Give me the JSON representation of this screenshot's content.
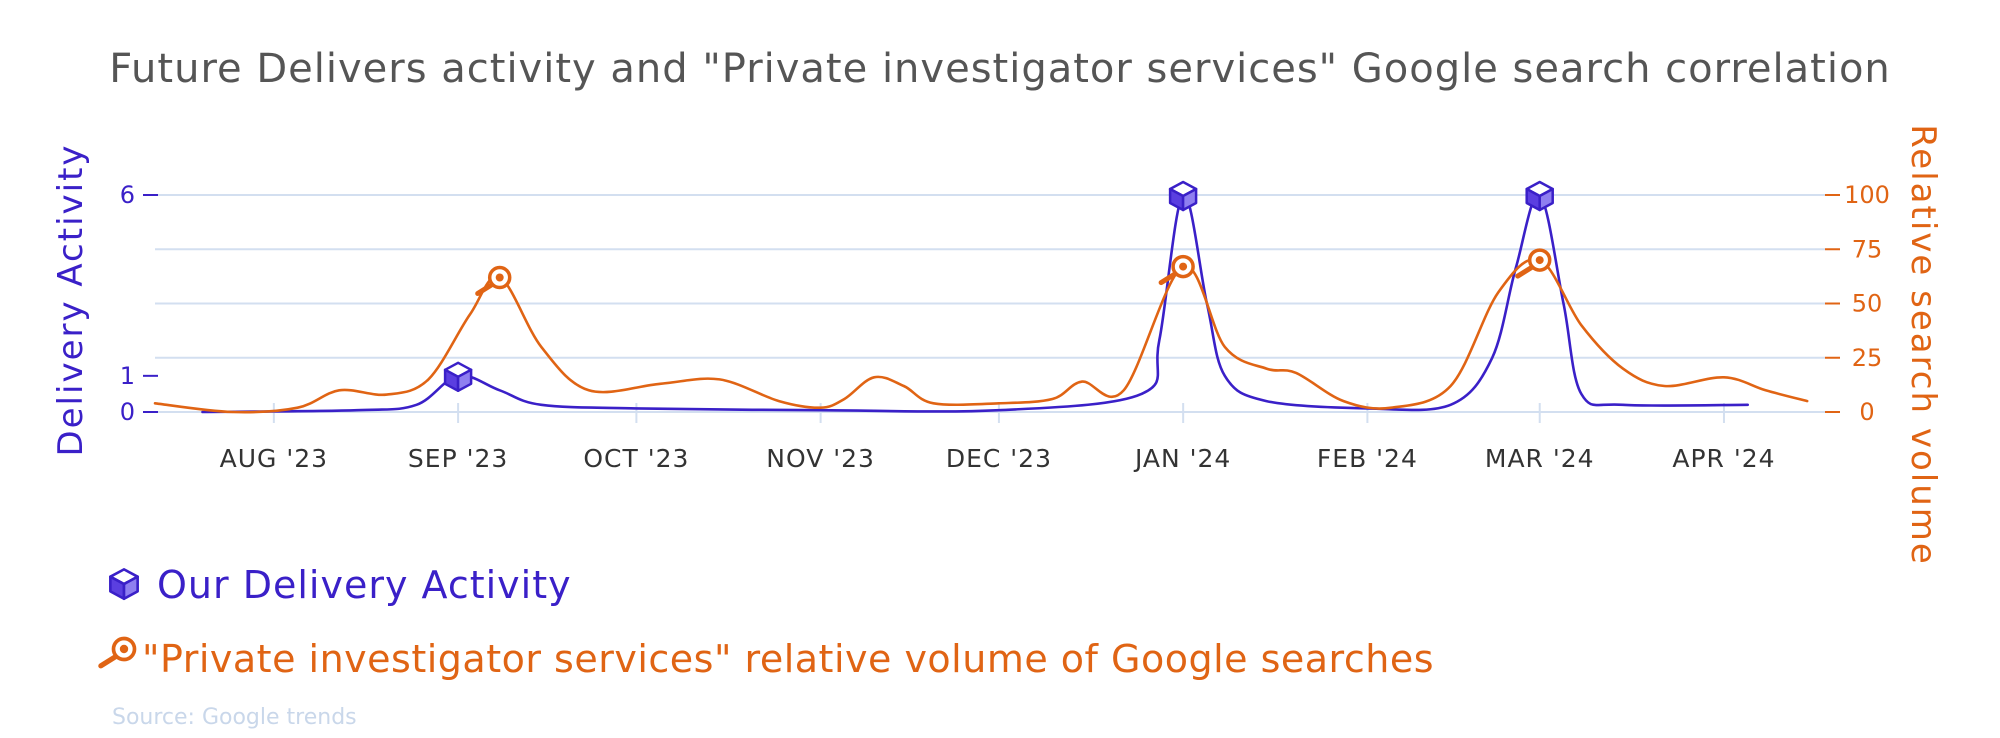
{
  "chart_data": {
    "type": "line",
    "title": "Future Delivers activity and \"Private investigator services\" Google search correlation",
    "x_ticks": [
      "AUG '23",
      "SEP '23",
      "OCT '23",
      "NOV '23",
      "DEC '23",
      "JAN '24",
      "FEB '24",
      "MAR '24",
      "APR '24"
    ],
    "y_left": {
      "label": "Delivery Activity",
      "ticks": [
        0,
        1,
        6
      ],
      "range": [
        0,
        6
      ]
    },
    "y_right": {
      "label": "Relative search volume",
      "ticks": [
        0,
        25,
        50,
        75,
        100
      ],
      "range": [
        0,
        100
      ]
    },
    "grid": true,
    "legend_placement": "bottom-left",
    "series": [
      {
        "name": "Our Delivery Activity",
        "axis": "left",
        "color": "#3a20c8",
        "marker_icon": "cube-icon",
        "points": [
          [
            "2023-07-20",
            0.0
          ],
          [
            "2023-08-15",
            0.05
          ],
          [
            "2023-08-25",
            0.2
          ],
          [
            "2023-09-01",
            1.0
          ],
          [
            "2023-09-08",
            0.6
          ],
          [
            "2023-09-15",
            0.2
          ],
          [
            "2023-10-01",
            0.1
          ],
          [
            "2023-11-01",
            0.05
          ],
          [
            "2023-12-01",
            0.05
          ],
          [
            "2023-12-25",
            0.5
          ],
          [
            "2023-12-28",
            2.0
          ],
          [
            "2024-01-01",
            6.0
          ],
          [
            "2024-01-05",
            3.0
          ],
          [
            "2024-01-08",
            1.0
          ],
          [
            "2024-01-15",
            0.3
          ],
          [
            "2024-02-01",
            0.1
          ],
          [
            "2024-02-15",
            0.2
          ],
          [
            "2024-02-22",
            1.5
          ],
          [
            "2024-02-26",
            4.0
          ],
          [
            "2024-03-01",
            6.0
          ],
          [
            "2024-03-05",
            3.0
          ],
          [
            "2024-03-08",
            0.5
          ],
          [
            "2024-03-15",
            0.2
          ],
          [
            "2024-04-05",
            0.2
          ]
        ],
        "marked_points": [
          [
            "2023-09-01",
            1
          ],
          [
            "2024-01-01",
            6
          ],
          [
            "2024-03-01",
            6
          ]
        ]
      },
      {
        "name": "\"Private investigator services\" relative volume of Google searches",
        "axis": "right",
        "color": "#e06414",
        "marker_icon": "magnifier-icon",
        "points": [
          [
            "2023-07-12",
            4
          ],
          [
            "2023-07-25",
            0
          ],
          [
            "2023-08-05",
            2
          ],
          [
            "2023-08-12",
            10
          ],
          [
            "2023-08-20",
            8
          ],
          [
            "2023-08-27",
            15
          ],
          [
            "2023-09-03",
            45
          ],
          [
            "2023-09-08",
            62
          ],
          [
            "2023-09-15",
            30
          ],
          [
            "2023-09-23",
            10
          ],
          [
            "2023-10-05",
            13
          ],
          [
            "2023-10-15",
            15
          ],
          [
            "2023-10-25",
            5
          ],
          [
            "2023-11-01",
            2
          ],
          [
            "2023-11-05",
            6
          ],
          [
            "2023-11-10",
            16
          ],
          [
            "2023-11-15",
            12
          ],
          [
            "2023-11-20",
            4
          ],
          [
            "2023-12-01",
            4
          ],
          [
            "2023-12-10",
            6
          ],
          [
            "2023-12-15",
            14
          ],
          [
            "2023-12-22",
            10
          ],
          [
            "2024-01-01",
            67
          ],
          [
            "2024-01-08",
            30
          ],
          [
            "2024-01-15",
            20
          ],
          [
            "2024-01-20",
            18
          ],
          [
            "2024-01-28",
            5
          ],
          [
            "2024-02-05",
            2
          ],
          [
            "2024-02-15",
            12
          ],
          [
            "2024-02-23",
            55
          ],
          [
            "2024-03-01",
            70
          ],
          [
            "2024-03-08",
            40
          ],
          [
            "2024-03-15",
            20
          ],
          [
            "2024-03-22",
            12
          ],
          [
            "2024-04-01",
            16
          ],
          [
            "2024-04-08",
            10
          ],
          [
            "2024-04-15",
            5
          ]
        ],
        "marked_points": [
          [
            "2023-09-08",
            62
          ],
          [
            "2024-01-01",
            67
          ],
          [
            "2024-03-01",
            70
          ]
        ]
      }
    ],
    "source": "Source: Google trends"
  }
}
